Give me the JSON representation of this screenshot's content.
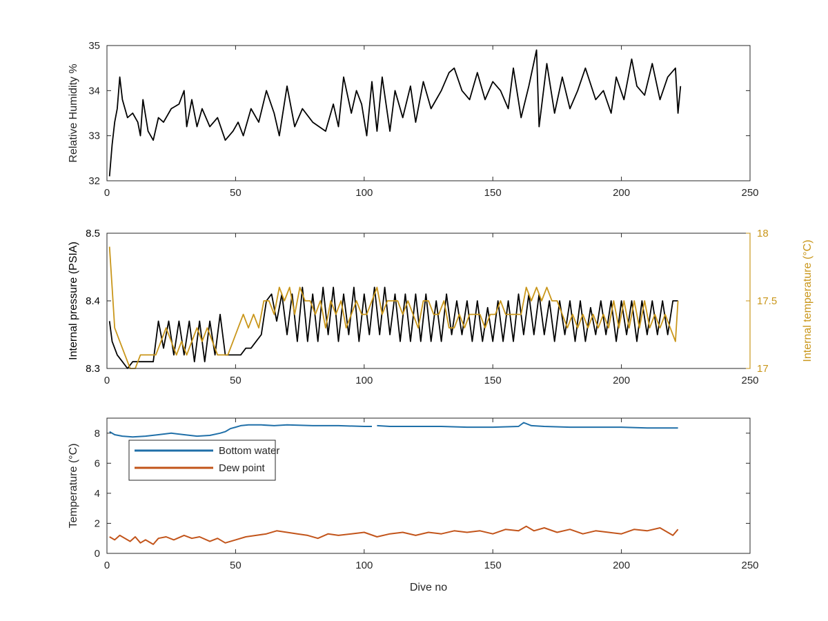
{
  "chart_data": [
    {
      "type": "line",
      "xlabel": "",
      "ylabel": "Relative Humidity %",
      "xlim": [
        0,
        250
      ],
      "ylim": [
        32,
        35
      ],
      "xticks": [
        0,
        50,
        100,
        150,
        200,
        250
      ],
      "yticks": [
        32,
        33,
        34,
        35
      ],
      "grid": false,
      "series": [
        {
          "name": "",
          "color": "#000000",
          "x": [
            1,
            2,
            3,
            4,
            5,
            6,
            8,
            10,
            12,
            13,
            14,
            16,
            18,
            20,
            22,
            25,
            28,
            30,
            31,
            33,
            35,
            37,
            40,
            43,
            46,
            49,
            51,
            53,
            56,
            59,
            62,
            65,
            67,
            70,
            73,
            76,
            80,
            85,
            88,
            90,
            92,
            95,
            97,
            99,
            101,
            103,
            105,
            107,
            110,
            112,
            115,
            118,
            120,
            123,
            126,
            130,
            133,
            135,
            138,
            141,
            144,
            147,
            150,
            153,
            156,
            158,
            161,
            164,
            167,
            168,
            171,
            174,
            177,
            180,
            183,
            186,
            190,
            193,
            196,
            198,
            201,
            204,
            206,
            209,
            212,
            215,
            218,
            221,
            222,
            223
          ],
          "y": [
            32.1,
            32.8,
            33.3,
            33.6,
            34.3,
            33.8,
            33.4,
            33.5,
            33.3,
            33.0,
            33.8,
            33.1,
            32.9,
            33.4,
            33.3,
            33.6,
            33.7,
            34.0,
            33.2,
            33.8,
            33.2,
            33.6,
            33.2,
            33.4,
            32.9,
            33.1,
            33.3,
            33.0,
            33.6,
            33.3,
            34.0,
            33.5,
            33.0,
            34.1,
            33.2,
            33.6,
            33.3,
            33.1,
            33.7,
            33.2,
            34.3,
            33.5,
            34.0,
            33.7,
            33.0,
            34.2,
            33.1,
            34.3,
            33.1,
            34.0,
            33.4,
            34.1,
            33.3,
            34.2,
            33.6,
            34.0,
            34.4,
            34.5,
            34.0,
            33.8,
            34.4,
            33.8,
            34.2,
            34.0,
            33.6,
            34.5,
            33.4,
            34.1,
            34.9,
            33.2,
            34.6,
            33.5,
            34.3,
            33.6,
            34.0,
            34.5,
            33.8,
            34.0,
            33.5,
            34.3,
            33.8,
            34.7,
            34.1,
            33.9,
            34.6,
            33.8,
            34.3,
            34.5,
            33.5,
            34.1
          ]
        }
      ]
    },
    {
      "type": "line",
      "xlabel": "",
      "ylabel": "Internal pressure (PSIA)",
      "ylabel_right": "Internal temperature (°C)",
      "xlim": [
        0,
        250
      ],
      "ylim": [
        8.3,
        8.5
      ],
      "ylim_right": [
        17,
        18
      ],
      "xticks": [
        0,
        50,
        100,
        150,
        200,
        250
      ],
      "yticks": [
        8.3,
        8.4,
        8.5
      ],
      "yticks_right": [
        17,
        17.5,
        18
      ],
      "grid": false,
      "series": [
        {
          "name": "",
          "axis": "left",
          "color": "#000000",
          "x": [
            1,
            2,
            4,
            6,
            8,
            10,
            12,
            14,
            16,
            18,
            20,
            22,
            24,
            26,
            28,
            30,
            32,
            34,
            36,
            38,
            40,
            42,
            44,
            46,
            48,
            50,
            52,
            54,
            56,
            58,
            60,
            62,
            64,
            66,
            68,
            70,
            72,
            74,
            76,
            78,
            80,
            82,
            84,
            86,
            88,
            90,
            92,
            94,
            96,
            98,
            100,
            102,
            104,
            106,
            108,
            110,
            112,
            114,
            116,
            118,
            120,
            122,
            124,
            126,
            128,
            130,
            132,
            134,
            136,
            138,
            140,
            142,
            144,
            146,
            148,
            150,
            152,
            154,
            156,
            158,
            160,
            162,
            164,
            166,
            168,
            170,
            172,
            174,
            176,
            178,
            180,
            182,
            184,
            186,
            188,
            190,
            192,
            194,
            196,
            198,
            200,
            202,
            204,
            206,
            208,
            210,
            212,
            214,
            216,
            218,
            220,
            222
          ],
          "y": [
            8.37,
            8.34,
            8.32,
            8.31,
            8.3,
            8.31,
            8.31,
            8.31,
            8.31,
            8.31,
            8.37,
            8.33,
            8.37,
            8.32,
            8.37,
            8.32,
            8.37,
            8.31,
            8.37,
            8.31,
            8.37,
            8.32,
            8.38,
            8.32,
            8.32,
            8.32,
            8.32,
            8.33,
            8.33,
            8.34,
            8.35,
            8.4,
            8.41,
            8.37,
            8.41,
            8.35,
            8.41,
            8.34,
            8.42,
            8.34,
            8.41,
            8.34,
            8.42,
            8.35,
            8.42,
            8.34,
            8.41,
            8.35,
            8.42,
            8.34,
            8.41,
            8.35,
            8.42,
            8.35,
            8.42,
            8.35,
            8.41,
            8.34,
            8.41,
            8.34,
            8.41,
            8.34,
            8.41,
            8.34,
            8.4,
            8.34,
            8.41,
            8.35,
            8.4,
            8.35,
            8.4,
            8.34,
            8.4,
            8.34,
            8.39,
            8.34,
            8.4,
            8.34,
            8.4,
            8.34,
            8.41,
            8.35,
            8.41,
            8.35,
            8.41,
            8.35,
            8.4,
            8.34,
            8.4,
            8.35,
            8.4,
            8.34,
            8.4,
            8.34,
            8.39,
            8.35,
            8.4,
            8.35,
            8.4,
            8.34,
            8.4,
            8.35,
            8.4,
            8.34,
            8.4,
            8.35,
            8.4,
            8.35,
            8.4,
            8.35,
            8.4,
            8.4
          ]
        },
        {
          "name": "",
          "axis": "right",
          "color": "#C9961A",
          "x": [
            1,
            2,
            3,
            5,
            7,
            9,
            11,
            13,
            15,
            17,
            19,
            21,
            23,
            25,
            27,
            29,
            31,
            33,
            35,
            37,
            39,
            41,
            43,
            45,
            47,
            49,
            51,
            53,
            55,
            57,
            59,
            61,
            63,
            65,
            67,
            69,
            71,
            73,
            75,
            77,
            79,
            81,
            83,
            85,
            87,
            89,
            91,
            93,
            95,
            97,
            99,
            101,
            103,
            105,
            107,
            109,
            111,
            113,
            115,
            117,
            119,
            121,
            123,
            125,
            127,
            129,
            131,
            133,
            135,
            137,
            139,
            141,
            143,
            145,
            147,
            149,
            151,
            153,
            155,
            157,
            159,
            161,
            163,
            165,
            167,
            169,
            171,
            173,
            175,
            177,
            179,
            181,
            183,
            185,
            187,
            189,
            191,
            193,
            195,
            197,
            199,
            201,
            203,
            205,
            207,
            209,
            211,
            213,
            215,
            217,
            219,
            221,
            222
          ],
          "y": [
            17.9,
            17.6,
            17.3,
            17.2,
            17.1,
            17.0,
            17.0,
            17.1,
            17.1,
            17.1,
            17.1,
            17.2,
            17.3,
            17.2,
            17.1,
            17.2,
            17.1,
            17.2,
            17.3,
            17.2,
            17.3,
            17.2,
            17.1,
            17.1,
            17.1,
            17.2,
            17.3,
            17.4,
            17.3,
            17.4,
            17.3,
            17.5,
            17.5,
            17.4,
            17.6,
            17.5,
            17.6,
            17.4,
            17.6,
            17.5,
            17.5,
            17.4,
            17.5,
            17.3,
            17.5,
            17.4,
            17.5,
            17.3,
            17.4,
            17.5,
            17.4,
            17.4,
            17.5,
            17.6,
            17.4,
            17.5,
            17.5,
            17.5,
            17.4,
            17.5,
            17.4,
            17.3,
            17.5,
            17.5,
            17.4,
            17.4,
            17.5,
            17.3,
            17.3,
            17.4,
            17.3,
            17.4,
            17.4,
            17.4,
            17.3,
            17.4,
            17.4,
            17.5,
            17.4,
            17.4,
            17.4,
            17.4,
            17.6,
            17.5,
            17.6,
            17.5,
            17.6,
            17.5,
            17.5,
            17.4,
            17.3,
            17.4,
            17.3,
            17.4,
            17.3,
            17.4,
            17.3,
            17.4,
            17.3,
            17.5,
            17.3,
            17.5,
            17.3,
            17.5,
            17.3,
            17.5,
            17.3,
            17.4,
            17.3,
            17.4,
            17.3,
            17.2,
            17.5
          ]
        }
      ]
    },
    {
      "type": "line",
      "xlabel": "Dive no",
      "ylabel": "Temperature (°C)",
      "xlim": [
        0,
        250
      ],
      "ylim": [
        0,
        9
      ],
      "xticks": [
        0,
        50,
        100,
        150,
        200,
        250
      ],
      "yticks": [
        0,
        2,
        4,
        6,
        8
      ],
      "grid": false,
      "legend": "top-left",
      "series": [
        {
          "name": "Bottom water",
          "color": "#1F6FA8",
          "x": [
            1,
            3,
            6,
            10,
            15,
            20,
            25,
            30,
            35,
            40,
            44,
            46,
            48,
            50,
            52,
            55,
            60,
            65,
            70,
            80,
            90,
            100,
            103,
            null,
            105,
            110,
            120,
            130,
            140,
            150,
            160,
            162,
            165,
            170,
            180,
            190,
            200,
            210,
            222
          ],
          "y": [
            8.1,
            7.9,
            7.8,
            7.75,
            7.8,
            7.9,
            8.0,
            7.9,
            7.8,
            7.85,
            8.0,
            8.1,
            8.3,
            8.4,
            8.5,
            8.55,
            8.55,
            8.5,
            8.55,
            8.5,
            8.5,
            8.45,
            8.45,
            null,
            8.5,
            8.45,
            8.45,
            8.45,
            8.4,
            8.4,
            8.45,
            8.7,
            8.5,
            8.45,
            8.4,
            8.4,
            8.4,
            8.35,
            8.35
          ]
        },
        {
          "name": "Dew point",
          "color": "#C2541A",
          "x": [
            1,
            3,
            5,
            7,
            9,
            11,
            13,
            15,
            18,
            20,
            23,
            26,
            30,
            33,
            36,
            40,
            43,
            46,
            50,
            54,
            58,
            62,
            66,
            70,
            74,
            78,
            82,
            86,
            90,
            95,
            100,
            105,
            110,
            115,
            120,
            125,
            130,
            135,
            140,
            145,
            150,
            155,
            160,
            163,
            166,
            170,
            175,
            180,
            185,
            190,
            195,
            200,
            205,
            210,
            215,
            220,
            222
          ],
          "y": [
            1.1,
            0.9,
            1.2,
            1.0,
            0.8,
            1.1,
            0.7,
            0.9,
            0.6,
            1.0,
            1.1,
            0.9,
            1.2,
            1.0,
            1.1,
            0.8,
            1.0,
            0.7,
            0.9,
            1.1,
            1.2,
            1.3,
            1.5,
            1.4,
            1.3,
            1.2,
            1.0,
            1.3,
            1.2,
            1.3,
            1.4,
            1.1,
            1.3,
            1.4,
            1.2,
            1.4,
            1.3,
            1.5,
            1.4,
            1.5,
            1.3,
            1.6,
            1.5,
            1.8,
            1.5,
            1.7,
            1.4,
            1.6,
            1.3,
            1.5,
            1.4,
            1.3,
            1.6,
            1.5,
            1.7,
            1.2,
            1.6
          ]
        }
      ]
    }
  ]
}
